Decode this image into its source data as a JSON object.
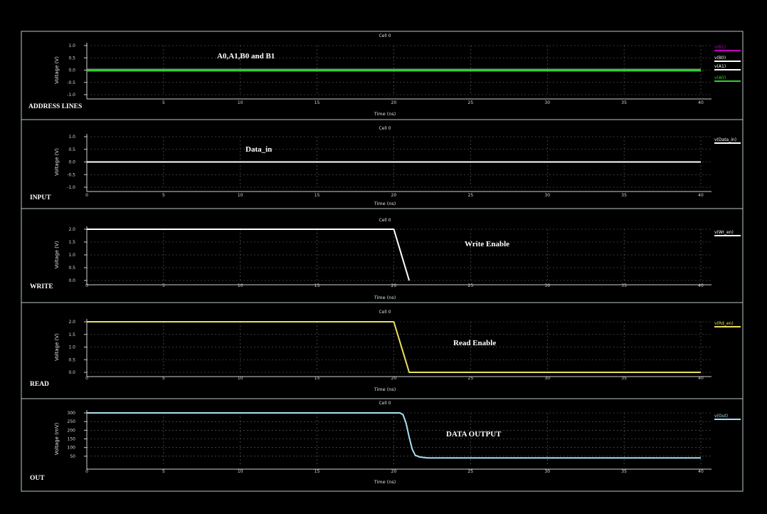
{
  "chart_data": [
    {
      "type": "line",
      "cell_label": "Cell 0",
      "side_label": "ADDRESS LINES",
      "annotation": "A0,A1,B0 and B1",
      "xlabel": "Time (ns)",
      "ylabel": "Voltage (V)",
      "xlim": [
        0,
        40
      ],
      "ylim": [
        -1.0,
        1.0
      ],
      "x_ticks": [
        "5",
        "10",
        "15",
        "20",
        "25",
        "30",
        "35",
        "40"
      ],
      "y_ticks": [
        "1.0",
        "0.5",
        "0.0",
        "-0.5",
        "-1.0"
      ],
      "y_tick_values": [
        1.0,
        0.5,
        0.0,
        -0.5,
        -1.0
      ],
      "grid": true,
      "legend_position": "right",
      "series": [
        {
          "name": "v(B1)",
          "color": "#c000c0",
          "x": [
            0,
            40
          ],
          "y": [
            0,
            0
          ]
        },
        {
          "name": "v(B0)",
          "color": "#ffffff",
          "x": [
            0,
            40
          ],
          "y": [
            0,
            0
          ]
        },
        {
          "name": "v(A1)",
          "color": "#ffffff",
          "x": [
            0,
            40
          ],
          "y": [
            0,
            0
          ]
        },
        {
          "name": "v(A0)",
          "color": "#33cc33",
          "x": [
            0,
            40
          ],
          "y": [
            0,
            0
          ]
        }
      ]
    },
    {
      "type": "line",
      "cell_label": "Cell 0",
      "side_label": "INPUT",
      "annotation": "Data_in",
      "xlabel": "Time (ns)",
      "ylabel": "Voltage (V)",
      "xlim": [
        0,
        40
      ],
      "ylim": [
        -1.0,
        1.0
      ],
      "x_ticks": [
        "0",
        "5",
        "10",
        "15",
        "20",
        "25",
        "30",
        "35",
        "40"
      ],
      "y_ticks": [
        "1.0",
        "0.5",
        "0.0",
        "-0.5",
        "-1.0"
      ],
      "y_tick_values": [
        1.0,
        0.5,
        0.0,
        -0.5,
        -1.0
      ],
      "grid": true,
      "legend_position": "right",
      "series": [
        {
          "name": "v(Data_in)",
          "color": "#ffffff",
          "x": [
            0,
            40
          ],
          "y": [
            0,
            0
          ]
        }
      ]
    },
    {
      "type": "line",
      "cell_label": "Cell 0",
      "side_label": "WRITE",
      "annotation": "Write Enable",
      "xlabel": "Time (ns)",
      "ylabel": "Voltage (V)",
      "xlim": [
        0,
        40
      ],
      "ylim": [
        0,
        2.0
      ],
      "x_ticks": [
        "0",
        "5",
        "10",
        "15",
        "20",
        "25",
        "30",
        "35",
        "40"
      ],
      "y_ticks": [
        "2.0",
        "1.5",
        "1.0",
        "0.5",
        "0.0"
      ],
      "y_tick_values": [
        2.0,
        1.5,
        1.0,
        0.5,
        0.0
      ],
      "grid": true,
      "legend_position": "right",
      "series": [
        {
          "name": "v(Wr_en)",
          "color": "#ffffff",
          "x": [
            0,
            20,
            21
          ],
          "y": [
            2.0,
            2.0,
            0.0
          ]
        }
      ]
    },
    {
      "type": "line",
      "cell_label": "Cell 0",
      "side_label": "READ",
      "annotation": "Read Enable",
      "xlabel": "Time (ns)",
      "ylabel": "Voltage (V)",
      "xlim": [
        0,
        40
      ],
      "ylim": [
        0,
        2.0
      ],
      "x_ticks": [
        "0",
        "5",
        "10",
        "15",
        "20",
        "25",
        "30",
        "35",
        "40"
      ],
      "y_ticks": [
        "2.0",
        "1.5",
        "1.0",
        "0.5",
        "0.0"
      ],
      "y_tick_values": [
        2.0,
        1.5,
        1.0,
        0.5,
        0.0
      ],
      "grid": true,
      "legend_position": "right",
      "series": [
        {
          "name": "v(Rd_en)",
          "color": "#e8e060",
          "x": [
            0,
            20,
            21,
            40
          ],
          "y": [
            2.0,
            2.0,
            0.0,
            0.0
          ]
        }
      ]
    },
    {
      "type": "line",
      "cell_label": "Cell 0",
      "side_label": "OUT",
      "annotation": "DATA OUTPUT",
      "xlabel": "Time (ns)",
      "ylabel": "Voltage (mV)",
      "xlim": [
        0,
        40
      ],
      "ylim": [
        0,
        300
      ],
      "x_ticks": [
        "0",
        "5",
        "10",
        "15",
        "20",
        "25",
        "30",
        "35",
        "40"
      ],
      "y_ticks": [
        "300",
        "250",
        "200",
        "150",
        "100",
        "50"
      ],
      "y_tick_values": [
        300,
        250,
        200,
        150,
        100,
        50
      ],
      "grid": true,
      "legend_position": "right",
      "series": [
        {
          "name": "v(Out)",
          "color": "#a8e0f0",
          "x": [
            0,
            20.4,
            20.6,
            20.8,
            21.0,
            21.2,
            21.4,
            21.7,
            22.2,
            40
          ],
          "y": [
            300,
            300,
            290,
            240,
            160,
            90,
            55,
            45,
            40,
            40
          ]
        }
      ]
    }
  ]
}
